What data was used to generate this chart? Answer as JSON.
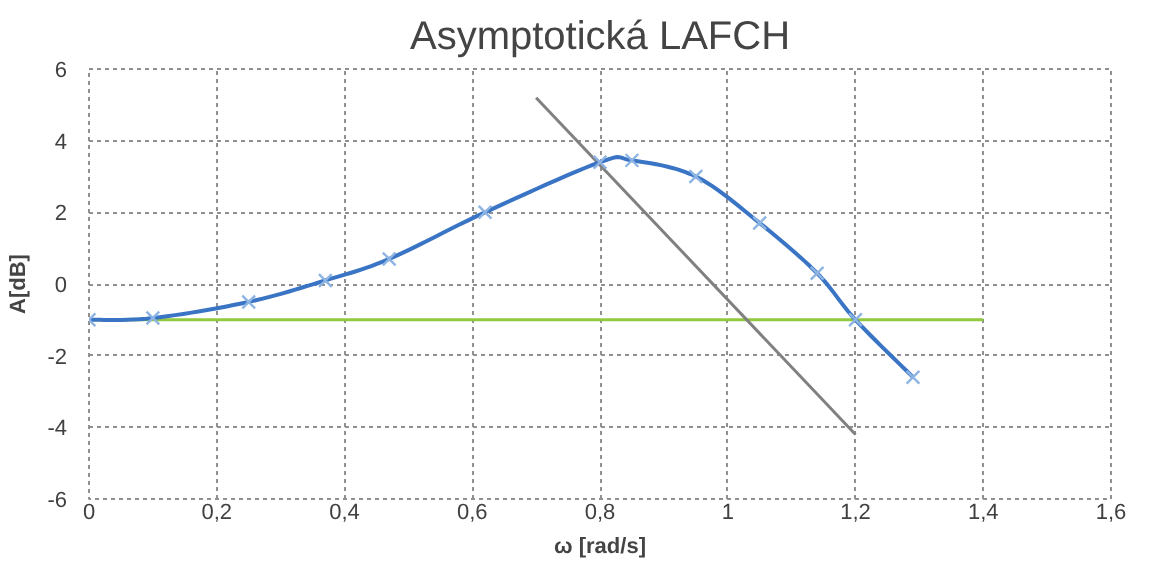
{
  "chart_data": {
    "type": "line",
    "title": "Asymptotická LAFCH",
    "xlabel": "ω [rad/s]",
    "ylabel": "A[dB]",
    "xlim": [
      0,
      1.6
    ],
    "ylim": [
      -6,
      6
    ],
    "xticks": [
      {
        "value": 0,
        "label": "0"
      },
      {
        "value": 0.2,
        "label": "0,2"
      },
      {
        "value": 0.4,
        "label": "0,4"
      },
      {
        "value": 0.6,
        "label": "0,6"
      },
      {
        "value": 0.8,
        "label": "0,8"
      },
      {
        "value": 1,
        "label": "1"
      },
      {
        "value": 1.2,
        "label": "1,2"
      },
      {
        "value": 1.4,
        "label": "1,4"
      },
      {
        "value": 1.6,
        "label": "1,6"
      }
    ],
    "yticks": [
      -6,
      -4,
      -2,
      0,
      2,
      4,
      6
    ],
    "grid": true,
    "series": [
      {
        "color": "#3a74c4",
        "marker": "cross",
        "x": [
          0,
          0.1,
          0.25,
          0.37,
          0.47,
          0.62,
          0.8,
          0.85,
          0.95,
          1.05,
          1.14,
          1.2,
          1.29
        ],
        "values": [
          -1,
          -0.95,
          -0.5,
          0.1,
          0.7,
          2.0,
          3.4,
          3.45,
          3.0,
          1.7,
          0.3,
          -1.0,
          -2.6
        ]
      },
      {
        "color": "#808080",
        "marker": "none",
        "x": [
          0.7,
          1.2
        ],
        "values": [
          5.2,
          -4.2
        ]
      },
      {
        "color": "#92c83e",
        "marker": "none",
        "x": [
          0,
          1.4
        ],
        "values": [
          -1,
          -1
        ]
      }
    ]
  }
}
